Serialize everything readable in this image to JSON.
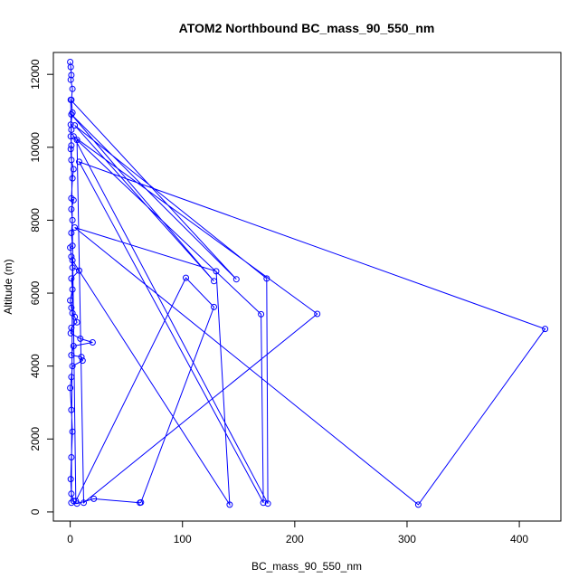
{
  "chart_data": {
    "type": "line",
    "title": "ATOM2 Northbound BC_mass_90_550_nm",
    "xlabel": "BC_mass_90_550_nm",
    "ylabel": "Altitude (m)",
    "xlim": [
      -15,
      437
    ],
    "ylim": [
      -250,
      12600
    ],
    "xticks": [
      0,
      100,
      200,
      300,
      400
    ],
    "yticks": [
      0,
      2000,
      4000,
      6000,
      8000,
      10000,
      12000
    ],
    "grid": false,
    "legend": "none",
    "color": "#0000ff",
    "marker": "open-circle",
    "series": [
      {
        "name": "",
        "points": [
          [
            0,
            12340
          ],
          [
            0.5,
            12200
          ],
          [
            1,
            11980
          ],
          [
            0.5,
            11850
          ],
          [
            2,
            11600
          ],
          [
            1,
            11300
          ],
          [
            2,
            10950
          ],
          [
            0.5,
            10620
          ],
          [
            1,
            10480
          ],
          [
            0.5,
            10300
          ],
          [
            1,
            10050
          ],
          [
            0.5,
            9950
          ],
          [
            1,
            9650
          ],
          [
            3,
            9400
          ],
          [
            2,
            9150
          ],
          [
            1,
            8600
          ],
          [
            3,
            8550
          ],
          [
            1,
            8300
          ],
          [
            2,
            8000
          ],
          [
            1,
            7650
          ],
          [
            2,
            7300
          ],
          [
            0,
            7250
          ],
          [
            1,
            7000
          ],
          [
            2,
            6700
          ],
          [
            8,
            6620
          ],
          [
            1,
            6400
          ],
          [
            2,
            6100
          ],
          [
            0,
            5800
          ],
          [
            1,
            5600
          ],
          [
            2,
            5450
          ],
          [
            4,
            5350
          ],
          [
            6,
            5200
          ],
          [
            1,
            5050
          ],
          [
            0.5,
            4900
          ],
          [
            9,
            4750
          ],
          [
            20,
            4650
          ],
          [
            3,
            4550
          ],
          [
            1,
            4300
          ],
          [
            10,
            4250
          ],
          [
            11,
            4150
          ],
          [
            2,
            4000
          ],
          [
            1,
            3700
          ],
          [
            0,
            3400
          ],
          [
            1,
            2800
          ],
          [
            2,
            2200
          ],
          [
            1,
            1500
          ],
          [
            0.5,
            900
          ],
          [
            1,
            500
          ],
          [
            3,
            300
          ],
          [
            6,
            230
          ],
          [
            21,
            360
          ],
          [
            62,
            250
          ],
          [
            63,
            260
          ],
          [
            128,
            5620
          ],
          [
            103,
            6420
          ],
          [
            5,
            300
          ],
          [
            0.5,
            11300
          ],
          [
            148,
            6380
          ],
          [
            1,
            10900
          ],
          [
            128,
            6330
          ],
          [
            4,
            10600
          ],
          [
            175,
            6400
          ],
          [
            176,
            230
          ],
          [
            3,
            10300
          ],
          [
            220,
            5430
          ],
          [
            12,
            250
          ],
          [
            6,
            10200
          ],
          [
            170,
            5420
          ],
          [
            172,
            250
          ],
          [
            8,
            9600
          ],
          [
            423,
            5020
          ],
          [
            310,
            200
          ],
          [
            4,
            7800
          ],
          [
            130,
            6600
          ],
          [
            142,
            200
          ],
          [
            2,
            6900
          ],
          [
            1,
            250
          ]
        ]
      }
    ]
  }
}
